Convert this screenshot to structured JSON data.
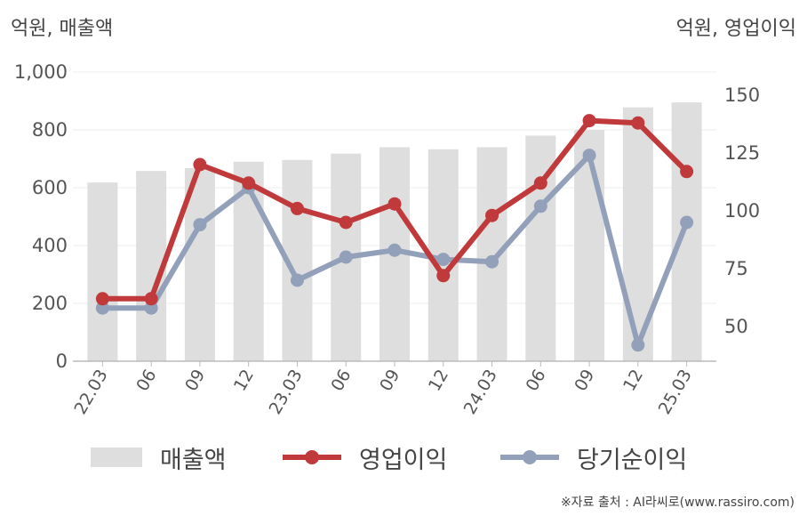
{
  "left_unit": "억원, 매출액",
  "right_unit": "억원, 영업이익",
  "source": "※자료 출처 : AI라씨로(www.rassiro.com)",
  "colors": {
    "bar": "#dedede",
    "operating_profit": "#c0393b",
    "net_income": "#92a0ba",
    "axis": "#bbbbbb",
    "grid": "#eeeeee"
  },
  "legend": {
    "sales": "매출액",
    "operating_profit": "영업이익",
    "net_income": "당기순이익"
  },
  "chart_data": {
    "type": "bar",
    "categories": [
      "22.03",
      "06",
      "09",
      "12",
      "23.03",
      "06",
      "09",
      "12",
      "24.03",
      "06",
      "09",
      "12",
      "25.03"
    ],
    "left_axis": {
      "ylim": [
        0,
        1000
      ],
      "ticks": [
        "0",
        "200",
        "400",
        "600",
        "800",
        "1,000"
      ]
    },
    "right_axis": {
      "ylim": [
        35,
        160
      ],
      "ticks": [
        "50",
        "75",
        "100",
        "125",
        "150"
      ]
    },
    "series": [
      {
        "name": "매출액",
        "type": "bar",
        "axis": "left",
        "values": [
          618,
          658,
          668,
          690,
          696,
          718,
          740,
          733,
          740,
          780,
          800,
          878,
          895
        ]
      },
      {
        "name": "영업이익",
        "type": "line",
        "axis": "right",
        "values": [
          62,
          62,
          120,
          112,
          101,
          95,
          103,
          72,
          98,
          112,
          139,
          138,
          117
        ]
      },
      {
        "name": "당기순이익",
        "type": "line",
        "axis": "right",
        "values": [
          58,
          58,
          94,
          110,
          70,
          80,
          83,
          79,
          78,
          102,
          124,
          42,
          95
        ]
      }
    ]
  }
}
